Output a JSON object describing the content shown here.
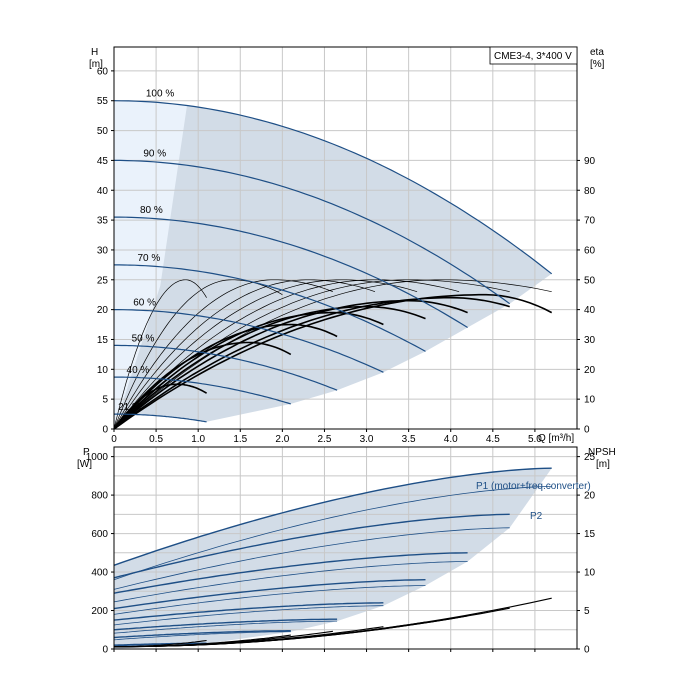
{
  "colors": {
    "curve_blue": "#1e4f86",
    "fill_dark": "#d2dce7",
    "fill_light": "#eaf2fb",
    "grid": "#c8c8c8",
    "eff_curve": "#000000",
    "npsh_curve": "#000000"
  },
  "chart_data": [
    {
      "type": "line",
      "title": "CME3-4, 3*400 V",
      "xlabel": "Q [m³/h]",
      "ylabel": "H",
      "ylabel_unit": "[m]",
      "y2label": "eta",
      "y2label_unit": "[%]",
      "xlim": [
        0,
        5.5
      ],
      "ylim": [
        0,
        64
      ],
      "y2lim": [
        0,
        128
      ],
      "x_ticks": [
        0,
        0.5,
        1.0,
        1.5,
        2.0,
        2.5,
        3.0,
        3.5,
        4.0,
        4.5,
        5.0
      ],
      "x_tick_labels": [
        "0",
        "0.5",
        "1.0",
        "1.5",
        "2.0",
        "2.5",
        "3.0",
        "3.5",
        "4.0",
        "4.5",
        "5.0"
      ],
      "y_ticks": [
        0,
        5,
        10,
        15,
        20,
        25,
        30,
        35,
        40,
        45,
        50,
        55,
        60
      ],
      "y2_ticks": [
        0,
        10,
        20,
        30,
        40,
        50,
        60,
        70,
        80,
        90
      ],
      "grid": true,
      "speed_curves": [
        {
          "label": "100 %",
          "H0": 55,
          "Qmax": 5.2,
          "Hend": 26
        },
        {
          "label": "90 %",
          "H0": 45,
          "Qmax": 4.7,
          "Hend": 21
        },
        {
          "label": "80 %",
          "H0": 35.5,
          "Qmax": 4.2,
          "Hend": 17
        },
        {
          "label": "70 %",
          "H0": 27.5,
          "Qmax": 3.7,
          "Hend": 13
        },
        {
          "label": "60 %",
          "H0": 20,
          "Qmax": 3.2,
          "Hend": 9.5
        },
        {
          "label": "50 %",
          "H0": 14,
          "Qmax": 2.65,
          "Hend": 6.5
        },
        {
          "label": "40 %",
          "H0": 8.7,
          "Qmax": 2.1,
          "Hend": 4.2
        },
        {
          "label": "21 %",
          "H0": 2.5,
          "Qmax": 1.1,
          "Hend": 1.2
        }
      ],
      "efficiency_curves": [
        {
          "Qmax": 1.1,
          "eta_max": 15,
          "Qpeak": 0.75,
          "eta_end": 12
        },
        {
          "Qmax": 2.1,
          "eta_max": 29,
          "Qpeak": 1.6,
          "eta_end": 25
        },
        {
          "Qmax": 2.65,
          "eta_max": 35,
          "Qpeak": 2.1,
          "eta_end": 31
        },
        {
          "Qmax": 3.2,
          "eta_max": 39,
          "Qpeak": 2.6,
          "eta_end": 35
        },
        {
          "Qmax": 3.7,
          "eta_max": 41,
          "Qpeak": 3.0,
          "eta_end": 37
        },
        {
          "Qmax": 4.2,
          "eta_max": 43,
          "Qpeak": 3.5,
          "eta_end": 39
        },
        {
          "Qmax": 4.7,
          "eta_max": 44,
          "Qpeak": 4.0,
          "eta_end": 41
        },
        {
          "Qmax": 5.2,
          "eta_max": 45,
          "Qpeak": 4.4,
          "eta_end": 39
        },
        {
          "Qmax": 1.1,
          "eta_max": 50,
          "Qpeak": 0.85,
          "eta_end": 44
        },
        {
          "Qmax": 2.0,
          "eta_max": 50,
          "Qpeak": 1.4,
          "eta_end": 45
        },
        {
          "Qmax": 2.6,
          "eta_max": 50,
          "Qpeak": 1.9,
          "eta_end": 46
        },
        {
          "Qmax": 3.1,
          "eta_max": 50,
          "Qpeak": 2.3,
          "eta_end": 46
        },
        {
          "Qmax": 3.6,
          "eta_max": 50,
          "Qpeak": 2.7,
          "eta_end": 46
        },
        {
          "Qmax": 4.1,
          "eta_max": 50,
          "Qpeak": 3.1,
          "eta_end": 46
        },
        {
          "Qmax": 4.7,
          "eta_max": 50,
          "Qpeak": 3.5,
          "eta_end": 46
        },
        {
          "Qmax": 5.2,
          "eta_max": 50,
          "Qpeak": 3.9,
          "eta_end": 46
        }
      ]
    },
    {
      "type": "line",
      "xlabel": "",
      "ylabel": "P",
      "ylabel_unit": "[W]",
      "y2label": "NPSH",
      "y2label_unit": "[m]",
      "xlim": [
        0,
        5.5
      ],
      "ylim": [
        0,
        1050
      ],
      "y2lim": [
        0,
        26.25
      ],
      "y_ticks": [
        0,
        200,
        400,
        600,
        800,
        1000
      ],
      "y2_ticks": [
        0,
        5,
        10,
        15,
        20,
        25
      ],
      "grid": true,
      "series_labels": [
        "P1 (motor+freq.converter)",
        "P2"
      ],
      "p1_curves": [
        {
          "P0": 435,
          "Qmax": 5.2,
          "Pend": 940
        },
        {
          "P0": 370,
          "Qmax": 4.7,
          "Pend": 700
        },
        {
          "P0": 290,
          "Qmax": 4.2,
          "Pend": 500
        },
        {
          "P0": 210,
          "Qmax": 3.7,
          "Pend": 360
        },
        {
          "P0": 150,
          "Qmax": 3.2,
          "Pend": 240
        },
        {
          "P0": 100,
          "Qmax": 2.65,
          "Pend": 155
        },
        {
          "P0": 60,
          "Qmax": 2.1,
          "Pend": 95
        },
        {
          "P0": 20,
          "Qmax": 1.1,
          "Pend": 30
        }
      ],
      "p2_curves": [
        {
          "P0": 360,
          "Qmax": 5.2,
          "Pend": 845
        },
        {
          "P0": 310,
          "Qmax": 4.7,
          "Pend": 630
        },
        {
          "P0": 245,
          "Qmax": 4.2,
          "Pend": 455
        },
        {
          "P0": 180,
          "Qmax": 3.7,
          "Pend": 330
        },
        {
          "P0": 125,
          "Qmax": 3.2,
          "Pend": 225
        },
        {
          "P0": 82,
          "Qmax": 2.65,
          "Pend": 145
        },
        {
          "P0": 48,
          "Qmax": 2.1,
          "Pend": 90
        },
        {
          "P0": 15,
          "Qmax": 1.1,
          "Pend": 28
        }
      ],
      "npsh_curves": [
        {
          "Qmax": 5.2,
          "Nend": 6.6
        },
        {
          "Qmax": 4.7,
          "Nend": 5.3
        },
        {
          "Qmax": 4.2,
          "Nend": 4.3
        },
        {
          "Qmax": 3.7,
          "Nend": 3.5
        },
        {
          "Qmax": 3.2,
          "Nend": 2.9
        },
        {
          "Qmax": 2.6,
          "Nend": 2.3
        },
        {
          "Qmax": 2.1,
          "Nend": 1.8
        },
        {
          "Qmax": 1.1,
          "Nend": 1.1
        }
      ]
    }
  ]
}
